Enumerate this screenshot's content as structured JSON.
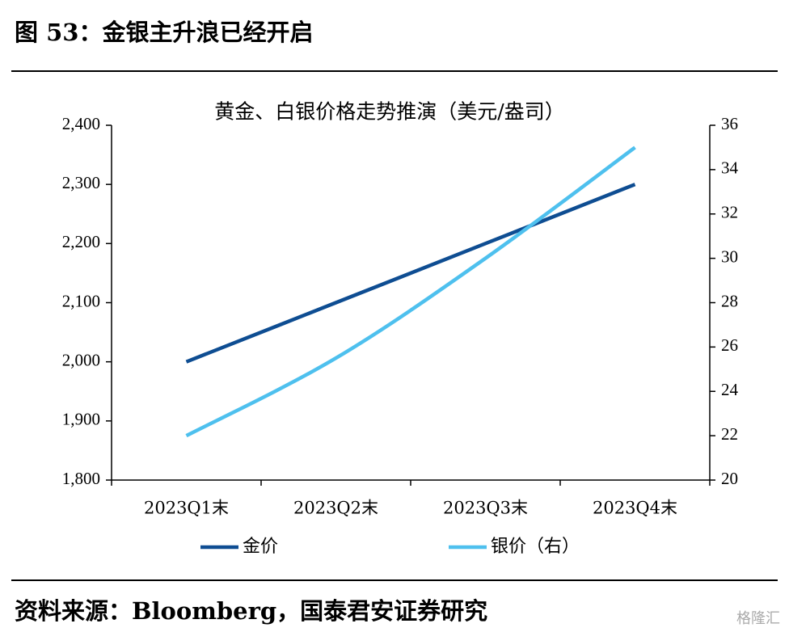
{
  "header": {
    "title": "图 53：金银主升浪已经开启"
  },
  "chart_data": {
    "type": "line",
    "title": "黄金、白银价格走势推演（美元/盎司）",
    "categories": [
      "2023Q1末",
      "2023Q2末",
      "2023Q3末",
      "2023Q4末"
    ],
    "series": [
      {
        "name": "金价",
        "color": "#0e4d92",
        "values": [
          2000,
          2100,
          2200,
          2300
        ]
      },
      {
        "name": "银价（右）",
        "color": "#4ec0ee",
        "values": [
          22,
          25.5,
          30,
          35
        ],
        "axis": "y2"
      }
    ],
    "ylim": [
      1800,
      2400
    ],
    "yticks": [
      {
        "value": 1800,
        "label": "1,800"
      },
      {
        "value": 1900,
        "label": "1,900"
      },
      {
        "value": 2000,
        "label": "2,000"
      },
      {
        "value": 2100,
        "label": "2,100"
      },
      {
        "value": 2200,
        "label": "2,200"
      },
      {
        "value": 2300,
        "label": "2,300"
      },
      {
        "value": 2400,
        "label": "2,400"
      }
    ],
    "y2lim": [
      20,
      36
    ],
    "y2ticks": [
      20,
      22,
      24,
      26,
      28,
      30,
      32,
      34,
      36
    ],
    "legend": "bottom"
  },
  "footer": {
    "source": "资料来源：Bloomberg，国泰君安证券研究",
    "watermark": "格隆汇"
  }
}
